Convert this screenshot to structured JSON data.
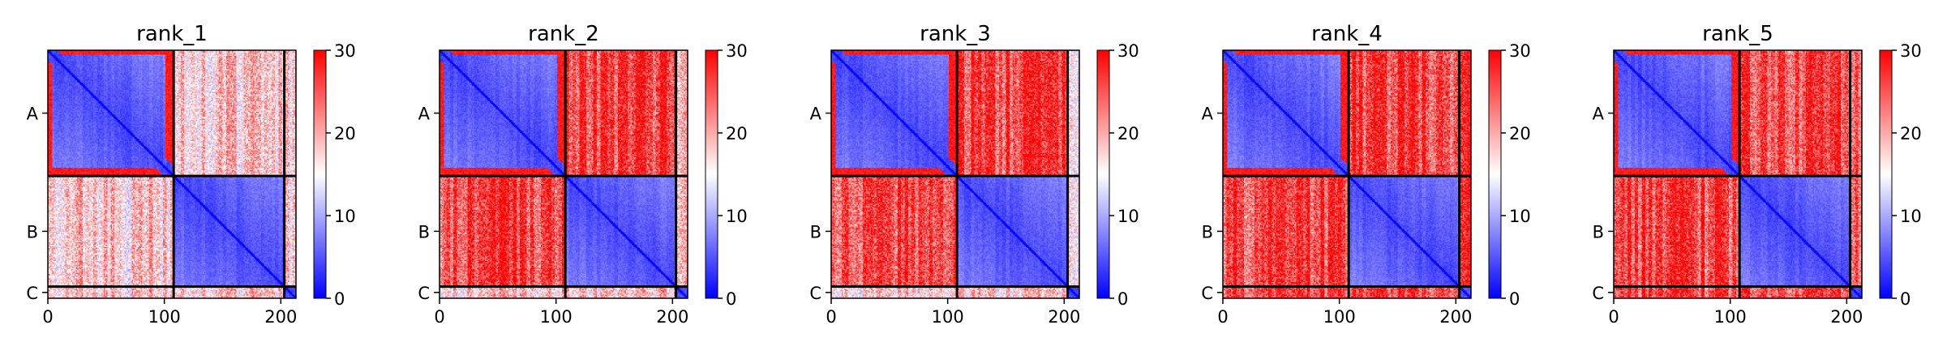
{
  "chart_data": [
    {
      "type": "heatmap",
      "title": "rank_1",
      "x_ticks": [
        "0",
        "100",
        "200"
      ],
      "x_tick_values": [
        0,
        100,
        200
      ],
      "chain_labels": [
        "A",
        "B",
        "C"
      ],
      "chain_ranges": [
        [
          0,
          108
        ],
        [
          108,
          203
        ],
        [
          203,
          213
        ]
      ],
      "n_residues": 213,
      "colorbar": {
        "min": 0,
        "max": 30,
        "ticks": [
          "0",
          "10",
          "20",
          "30"
        ],
        "colors": {
          "low": "#0000ff",
          "mid": "#ffffff",
          "high": "#ff0000"
        }
      },
      "inter_chain_AB": "mixed",
      "inter_chain_C": "mixed"
    },
    {
      "type": "heatmap",
      "title": "rank_2",
      "x_ticks": [
        "0",
        "100",
        "200"
      ],
      "x_tick_values": [
        0,
        100,
        200
      ],
      "chain_labels": [
        "A",
        "B",
        "C"
      ],
      "chain_ranges": [
        [
          0,
          108
        ],
        [
          108,
          203
        ],
        [
          203,
          213
        ]
      ],
      "n_residues": 213,
      "colorbar": {
        "min": 0,
        "max": 30,
        "ticks": [
          "0",
          "10",
          "20",
          "30"
        ],
        "colors": {
          "low": "#0000ff",
          "mid": "#ffffff",
          "high": "#ff0000"
        }
      },
      "inter_chain_AB": "high",
      "inter_chain_C": "mixed"
    },
    {
      "type": "heatmap",
      "title": "rank_3",
      "x_ticks": [
        "0",
        "100",
        "200"
      ],
      "x_tick_values": [
        0,
        100,
        200
      ],
      "chain_labels": [
        "A",
        "B",
        "C"
      ],
      "chain_ranges": [
        [
          0,
          108
        ],
        [
          108,
          203
        ],
        [
          203,
          213
        ]
      ],
      "n_residues": 213,
      "colorbar": {
        "min": 0,
        "max": 30,
        "ticks": [
          "0",
          "10",
          "20",
          "30"
        ],
        "colors": {
          "low": "#0000ff",
          "mid": "#ffffff",
          "high": "#ff0000"
        }
      },
      "inter_chain_AB": "high",
      "inter_chain_C": "mixed"
    },
    {
      "type": "heatmap",
      "title": "rank_4",
      "x_ticks": [
        "0",
        "100",
        "200"
      ],
      "x_tick_values": [
        0,
        100,
        200
      ],
      "chain_labels": [
        "A",
        "B",
        "C"
      ],
      "chain_ranges": [
        [
          0,
          108
        ],
        [
          108,
          203
        ],
        [
          203,
          213
        ]
      ],
      "n_residues": 213,
      "colorbar": {
        "min": 0,
        "max": 30,
        "ticks": [
          "0",
          "10",
          "20",
          "30"
        ],
        "colors": {
          "low": "#0000ff",
          "mid": "#ffffff",
          "high": "#ff0000"
        }
      },
      "inter_chain_AB": "high",
      "inter_chain_C": "high"
    },
    {
      "type": "heatmap",
      "title": "rank_5",
      "x_ticks": [
        "0",
        "100",
        "200"
      ],
      "x_tick_values": [
        0,
        100,
        200
      ],
      "chain_labels": [
        "A",
        "B",
        "C"
      ],
      "chain_ranges": [
        [
          0,
          108
        ],
        [
          108,
          203
        ],
        [
          203,
          213
        ]
      ],
      "n_residues": 213,
      "colorbar": {
        "min": 0,
        "max": 30,
        "ticks": [
          "0",
          "10",
          "20",
          "30"
        ],
        "colors": {
          "low": "#0000ff",
          "mid": "#ffffff",
          "high": "#ff0000"
        }
      },
      "inter_chain_AB": "high",
      "inter_chain_C": "high"
    }
  ]
}
